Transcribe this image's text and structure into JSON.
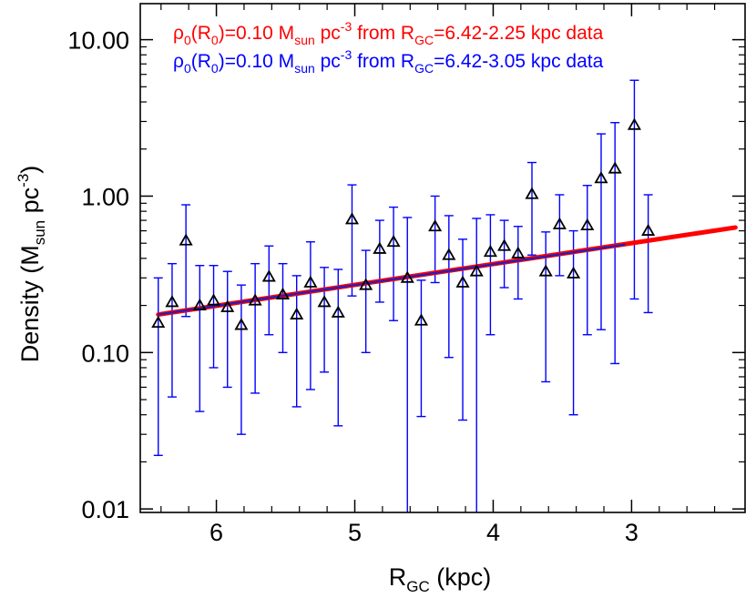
{
  "chart_data": {
    "type": "scatter",
    "xlabel": {
      "main": "R",
      "sub": "GC",
      "rest": " (kpc)"
    },
    "ylabel": {
      "main": "Density (M",
      "sub": "sun",
      "mid": " pc",
      "sup": "-3",
      "end": ")"
    },
    "x_reversed": true,
    "xlim": [
      6.55,
      2.18
    ],
    "ylim": [
      0.0095,
      17
    ],
    "y_scale": "log",
    "x_ticks": [
      {
        "value": 6,
        "label": "6"
      },
      {
        "value": 5,
        "label": "5"
      },
      {
        "value": 4,
        "label": "4"
      },
      {
        "value": 3,
        "label": "3"
      }
    ],
    "y_ticks": [
      {
        "value": 0.01,
        "label": "0.01"
      },
      {
        "value": 0.1,
        "label": "0.10"
      },
      {
        "value": 1,
        "label": "1.00"
      },
      {
        "value": 10,
        "label": "10.00"
      }
    ],
    "legend": [
      {
        "color": "#ff0000",
        "parts": [
          "ρ",
          "0",
          "(R",
          "0",
          ")=0.10 M",
          "sun",
          " pc",
          "-3",
          " from R",
          "GC",
          "=6.42-2.25 kpc data"
        ]
      },
      {
        "color": "#0000ff",
        "parts": [
          "ρ",
          "0",
          "(R",
          "0",
          ")=0.10 M",
          "sun",
          " pc",
          "-3",
          " from R",
          "GC",
          "=6.42-3.05 kpc data"
        ]
      }
    ],
    "fits": [
      {
        "name": "fit 6.42-2.25 kpc",
        "color": "#ff0000",
        "x": [
          6.42,
          2.25
        ],
        "y": [
          0.175,
          0.63
        ]
      },
      {
        "name": "fit 6.42-3.05 kpc",
        "color": "#2020c0",
        "x": [
          6.42,
          3.05
        ],
        "y": [
          0.175,
          0.49
        ]
      }
    ],
    "points": [
      {
        "x": 6.42,
        "y": 0.155,
        "lo": 0.022,
        "hi": 0.3
      },
      {
        "x": 6.32,
        "y": 0.21,
        "lo": 0.052,
        "hi": 0.37
      },
      {
        "x": 6.22,
        "y": 0.52,
        "lo": 0.17,
        "hi": 0.88
      },
      {
        "x": 6.12,
        "y": 0.2,
        "lo": 0.042,
        "hi": 0.36
      },
      {
        "x": 6.02,
        "y": 0.215,
        "lo": 0.08,
        "hi": 0.36
      },
      {
        "x": 5.92,
        "y": 0.195,
        "lo": 0.06,
        "hi": 0.33
      },
      {
        "x": 5.82,
        "y": 0.15,
        "lo": 0.03,
        "hi": 0.27
      },
      {
        "x": 5.72,
        "y": 0.215,
        "lo": 0.055,
        "hi": 0.37
      },
      {
        "x": 5.62,
        "y": 0.305,
        "lo": 0.13,
        "hi": 0.48
      },
      {
        "x": 5.52,
        "y": 0.235,
        "lo": 0.1,
        "hi": 0.37
      },
      {
        "x": 5.42,
        "y": 0.175,
        "lo": 0.045,
        "hi": 0.31
      },
      {
        "x": 5.32,
        "y": 0.28,
        "lo": 0.058,
        "hi": 0.51
      },
      {
        "x": 5.22,
        "y": 0.21,
        "lo": 0.075,
        "hi": 0.35
      },
      {
        "x": 5.12,
        "y": 0.18,
        "lo": 0.034,
        "hi": 0.34
      },
      {
        "x": 5.02,
        "y": 0.71,
        "lo": 0.23,
        "hi": 1.18
      },
      {
        "x": 4.92,
        "y": 0.27,
        "lo": 0.1,
        "hi": 0.45
      },
      {
        "x": 4.82,
        "y": 0.46,
        "lo": 0.21,
        "hi": 0.7
      },
      {
        "x": 4.72,
        "y": 0.51,
        "lo": 0.16,
        "hi": 0.85
      },
      {
        "x": 4.62,
        "y": 0.3,
        "lo": 0.0095,
        "hi": 0.73
      },
      {
        "x": 4.52,
        "y": 0.16,
        "lo": 0.039,
        "hi": 0.29
      },
      {
        "x": 4.42,
        "y": 0.64,
        "lo": 0.28,
        "hi": 1.0
      },
      {
        "x": 4.32,
        "y": 0.42,
        "lo": 0.093,
        "hi": 0.75
      },
      {
        "x": 4.22,
        "y": 0.28,
        "lo": 0.037,
        "hi": 0.53
      },
      {
        "x": 4.12,
        "y": 0.33,
        "lo": 0.0095,
        "hi": 0.72
      },
      {
        "x": 4.02,
        "y": 0.44,
        "lo": 0.13,
        "hi": 0.76
      },
      {
        "x": 3.92,
        "y": 0.48,
        "lo": 0.26,
        "hi": 0.7
      },
      {
        "x": 3.82,
        "y": 0.43,
        "lo": 0.22,
        "hi": 0.64
      },
      {
        "x": 3.72,
        "y": 1.03,
        "lo": 0.42,
        "hi": 1.64
      },
      {
        "x": 3.62,
        "y": 0.33,
        "lo": 0.065,
        "hi": 0.59
      },
      {
        "x": 3.52,
        "y": 0.66,
        "lo": 0.31,
        "hi": 1.02
      },
      {
        "x": 3.42,
        "y": 0.32,
        "lo": 0.04,
        "hi": 0.6
      },
      {
        "x": 3.32,
        "y": 0.65,
        "lo": 0.13,
        "hi": 1.17
      },
      {
        "x": 3.22,
        "y": 1.3,
        "lo": 0.14,
        "hi": 2.5
      },
      {
        "x": 3.12,
        "y": 1.5,
        "lo": 0.085,
        "hi": 2.95
      },
      {
        "x": 2.98,
        "y": 2.85,
        "lo": 0.22,
        "hi": 5.5
      },
      {
        "x": 2.88,
        "y": 0.6,
        "lo": 0.18,
        "hi": 1.02
      }
    ]
  }
}
